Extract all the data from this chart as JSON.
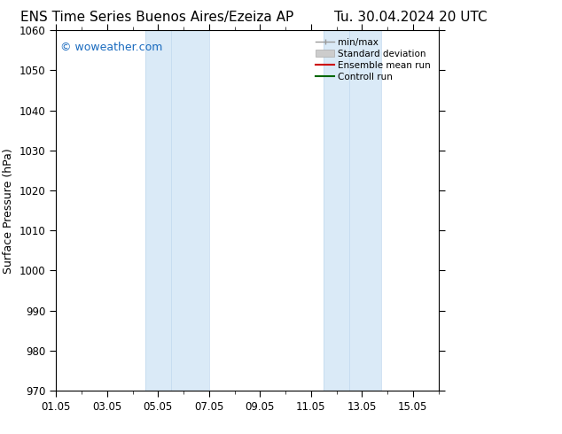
{
  "title_left": "ENS Time Series Buenos Aires/Ezeiza AP",
  "title_right": "Tu. 30.04.2024 20 UTC",
  "ylabel": "Surface Pressure (hPa)",
  "ylim": [
    970,
    1060
  ],
  "yticks": [
    970,
    980,
    990,
    1000,
    1010,
    1020,
    1030,
    1040,
    1050,
    1060
  ],
  "xtick_labels": [
    "01.05",
    "03.05",
    "05.05",
    "07.05",
    "09.05",
    "11.05",
    "13.05",
    "15.05"
  ],
  "xtick_positions": [
    0,
    2,
    4,
    6,
    8,
    10,
    12,
    14
  ],
  "xlim": [
    0,
    15
  ],
  "shaded_bands": [
    {
      "x_start": 3.5,
      "x_end": 4.5
    },
    {
      "x_start": 4.5,
      "x_end": 6.0
    },
    {
      "x_start": 10.5,
      "x_end": 11.5
    },
    {
      "x_start": 11.5,
      "x_end": 12.75
    }
  ],
  "shaded_color": "#daeaf7",
  "shaded_edge_color": "#c0d8ee",
  "watermark_text": "© woweather.com",
  "watermark_color": "#1a6bbf",
  "background_color": "#ffffff",
  "plot_bg_color": "#ffffff",
  "legend_items": [
    {
      "label": "min/max",
      "color": "#999999",
      "lw": 1.0
    },
    {
      "label": "Standard deviation",
      "color": "#cccccc",
      "lw": 6
    },
    {
      "label": "Ensemble mean run",
      "color": "#cc0000",
      "lw": 1.5
    },
    {
      "label": "Controll run",
      "color": "#006600",
      "lw": 1.5
    }
  ],
  "grid_color": "#cccccc",
  "axis_color": "#000000",
  "tick_color": "#000000",
  "title_fontsize": 11,
  "label_fontsize": 9,
  "tick_fontsize": 8.5,
  "legend_fontsize": 7.5
}
